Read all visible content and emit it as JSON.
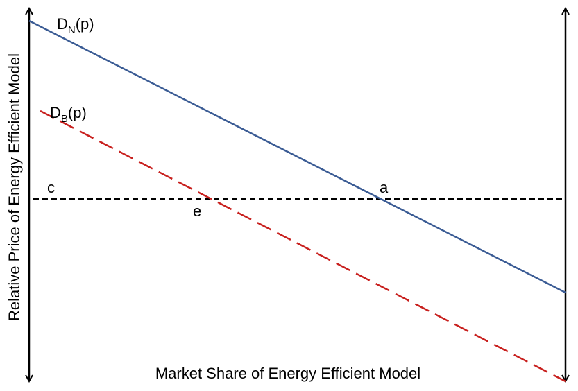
{
  "curves": [
    {
      "symbol": "D",
      "subscript": "N",
      "suffix": "(p)"
    },
    {
      "symbol": "D",
      "subscript": "B",
      "suffix": "(p)"
    }
  ],
  "points": {
    "c": "c",
    "a": "a",
    "e": "e"
  },
  "axes": {
    "y_label": "Relative Price of Energy Efficient Model",
    "x_label": "Market Share of Energy Efficient Model"
  }
}
